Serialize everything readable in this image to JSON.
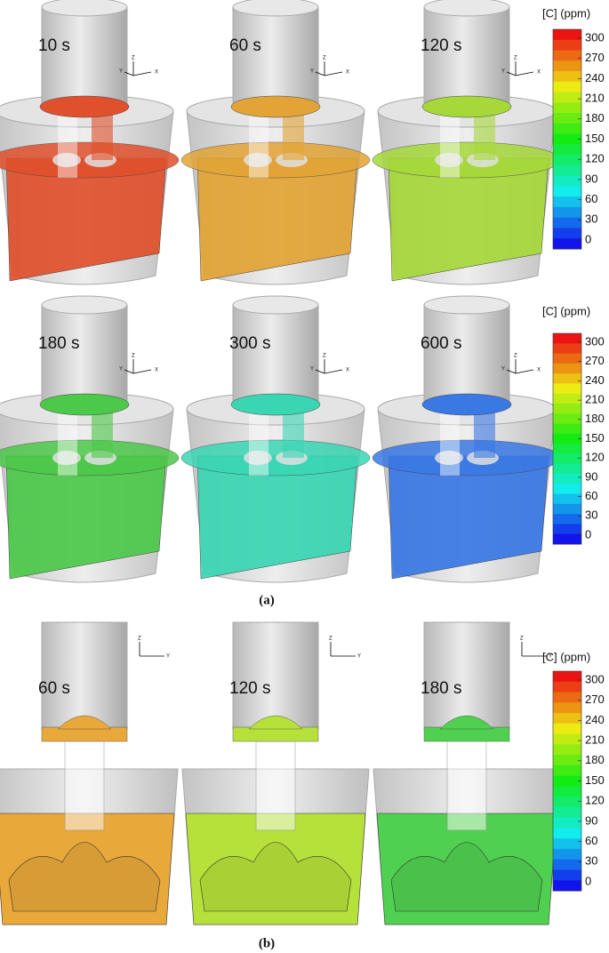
{
  "panels": [
    {
      "label": "(a)",
      "axes": {
        "z": "Z",
        "y": "Y",
        "x": "X"
      },
      "rows": [
        {
          "snapshots": [
            {
              "time": "10 s",
              "color": "#e0502c"
            },
            {
              "time": "60 s",
              "color": "#e2a436"
            },
            {
              "time": "120 s",
              "color": "#a6d83a"
            }
          ],
          "colorbar": {
            "title": "[C] (ppm)",
            "ticks": [
              300,
              270,
              240,
              210,
              180,
              150,
              120,
              90,
              60,
              30,
              0
            ]
          }
        },
        {
          "snapshots": [
            {
              "time": "180 s",
              "color": "#4cc84a"
            },
            {
              "time": "300 s",
              "color": "#3ad6b4"
            },
            {
              "time": "600 s",
              "color": "#3a78e4"
            }
          ],
          "colorbar": {
            "title": "[C] (ppm)",
            "ticks": [
              300,
              270,
              240,
              210,
              180,
              150,
              120,
              90,
              60,
              30,
              0
            ]
          }
        }
      ]
    },
    {
      "label": "(b)",
      "axes": {
        "z": "Z",
        "y": "Y"
      },
      "rows": [
        {
          "snapshots": [
            {
              "time": "60 s",
              "color": "#e8a83a"
            },
            {
              "time": "120 s",
              "color": "#b6e03a"
            },
            {
              "time": "180 s",
              "color": "#50d050"
            }
          ],
          "colorbar": {
            "title": "[C] (ppm)",
            "ticks": [
              300,
              270,
              240,
              210,
              180,
              150,
              120,
              90,
              60,
              30,
              0
            ]
          }
        }
      ]
    }
  ]
}
